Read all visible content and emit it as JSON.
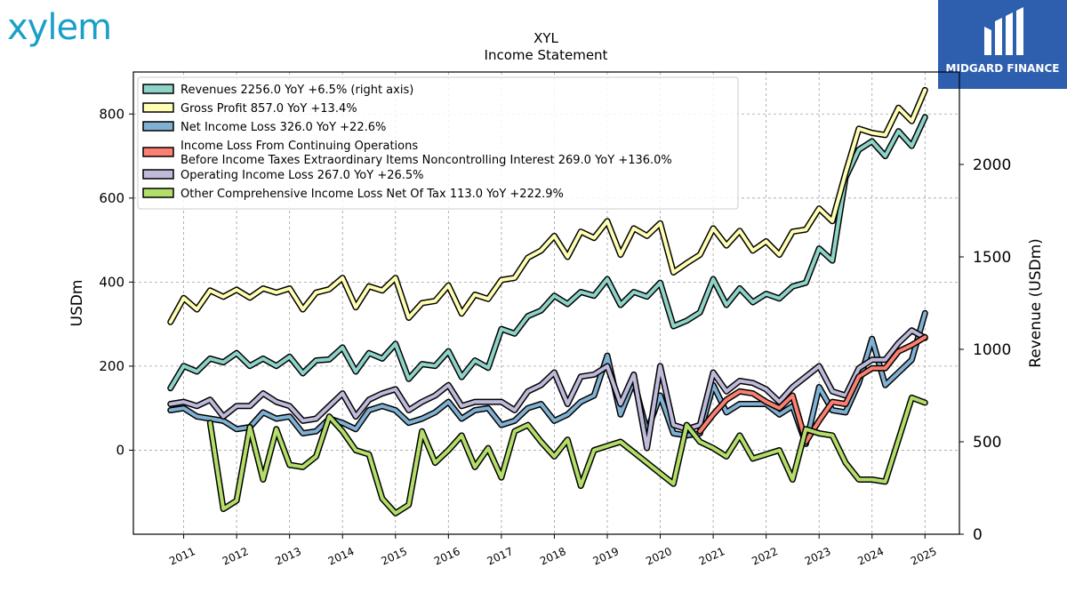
{
  "logo": {
    "text": "xylem",
    "color": "#1aa0c8"
  },
  "badge": {
    "text": "MIDGARD FINANCE",
    "color": "#2d5fae"
  },
  "chart_data": {
    "type": "line",
    "title": "XYL",
    "subtitle": "Income Statement",
    "ylabel": "USDm",
    "ylabel_right": "Revenue (USDm)",
    "ylim": [
      -200,
      900
    ],
    "ylim_right": [
      0,
      2500
    ],
    "xlim": [
      2010.05,
      2025.65
    ],
    "yticks": [
      0,
      200,
      400,
      600,
      800
    ],
    "yticks_right": [
      0,
      500,
      1000,
      1500,
      2000
    ],
    "xticks": [
      "2011",
      "2012",
      "2013",
      "2014",
      "2015",
      "2016",
      "2017",
      "2018",
      "2019",
      "2020",
      "2021",
      "2022",
      "2023",
      "2024",
      "2025"
    ],
    "grid": true,
    "legend_position": "top-left",
    "series": [
      {
        "name": "Revenues  2256.0 YoY +6.5% (right axis)",
        "axis": "right",
        "color": "#8dd3c7",
        "x": [
          2010.75,
          2011.0,
          2011.25,
          2011.5,
          2011.75,
          2012.0,
          2012.25,
          2012.5,
          2012.75,
          2013.0,
          2013.25,
          2013.5,
          2013.75,
          2014.0,
          2014.25,
          2014.5,
          2014.75,
          2015.0,
          2015.25,
          2015.5,
          2015.75,
          2016.0,
          2016.25,
          2016.5,
          2016.75,
          2017.0,
          2017.25,
          2017.5,
          2017.75,
          2018.0,
          2018.25,
          2018.5,
          2018.75,
          2019.0,
          2019.25,
          2019.5,
          2019.75,
          2020.0,
          2020.25,
          2020.5,
          2020.75,
          2021.0,
          2021.25,
          2021.5,
          2021.75,
          2022.0,
          2022.25,
          2022.5,
          2022.75,
          2023.0,
          2023.25,
          2023.5,
          2023.75,
          2024.0,
          2024.25,
          2024.5,
          2024.75,
          2025.0
        ],
        "values": [
          790,
          910,
          880,
          950,
          930,
          980,
          910,
          950,
          910,
          960,
          870,
          940,
          945,
          1010,
          880,
          980,
          950,
          1030,
          840,
          920,
          910,
          990,
          850,
          940,
          900,
          1110,
          1085,
          1180,
          1210,
          1290,
          1245,
          1310,
          1290,
          1380,
          1240,
          1310,
          1285,
          1360,
          1125,
          1155,
          1200,
          1380,
          1240,
          1330,
          1255,
          1300,
          1275,
          1340,
          1360,
          1545,
          1480,
          1930,
          2080,
          2125,
          2045,
          2180,
          2100,
          2256
        ]
      },
      {
        "name": "Gross Profit  857.0 YoY +13.4%",
        "axis": "left",
        "color": "#ffffb3",
        "x": [
          2010.75,
          2011.0,
          2011.25,
          2011.5,
          2011.75,
          2012.0,
          2012.25,
          2012.5,
          2012.75,
          2013.0,
          2013.25,
          2013.5,
          2013.75,
          2014.0,
          2014.25,
          2014.5,
          2014.75,
          2015.0,
          2015.25,
          2015.5,
          2015.75,
          2016.0,
          2016.25,
          2016.5,
          2016.75,
          2017.0,
          2017.25,
          2017.5,
          2017.75,
          2018.0,
          2018.25,
          2018.5,
          2018.75,
          2019.0,
          2019.25,
          2019.5,
          2019.75,
          2020.0,
          2020.25,
          2020.5,
          2020.75,
          2021.0,
          2021.25,
          2021.5,
          2021.75,
          2022.0,
          2022.25,
          2022.5,
          2022.75,
          2023.0,
          2023.25,
          2023.5,
          2023.75,
          2024.0,
          2024.25,
          2024.5,
          2024.75,
          2025.0
        ],
        "values": [
          305,
          362,
          335,
          380,
          365,
          382,
          363,
          385,
          375,
          385,
          335,
          375,
          383,
          410,
          340,
          390,
          380,
          410,
          315,
          350,
          355,
          392,
          325,
          370,
          360,
          405,
          410,
          458,
          475,
          510,
          460,
          520,
          505,
          545,
          465,
          528,
          510,
          540,
          423,
          445,
          465,
          528,
          487,
          522,
          475,
          497,
          465,
          520,
          525,
          575,
          545,
          660,
          765,
          755,
          750,
          815,
          783,
          857
        ]
      },
      {
        "name": "Net Income Loss  326.0 YoY +22.6%",
        "axis": "left",
        "color": "#80b1d3",
        "x": [
          2010.75,
          2011.0,
          2011.25,
          2011.5,
          2011.75,
          2012.0,
          2012.25,
          2012.5,
          2012.75,
          2013.0,
          2013.25,
          2013.5,
          2013.75,
          2014.0,
          2014.25,
          2014.5,
          2014.75,
          2015.0,
          2015.25,
          2015.5,
          2015.75,
          2016.0,
          2016.25,
          2016.5,
          2016.75,
          2017.0,
          2017.25,
          2017.5,
          2017.75,
          2018.0,
          2018.25,
          2018.5,
          2018.75,
          2019.0,
          2019.25,
          2019.5,
          2019.75,
          2020.0,
          2020.25,
          2020.5,
          2020.75,
          2021.0,
          2021.25,
          2021.5,
          2021.75,
          2022.0,
          2022.25,
          2022.5,
          2022.75,
          2023.0,
          2023.25,
          2023.5,
          2023.75,
          2024.0,
          2024.25,
          2024.5,
          2024.75,
          2025.0
        ],
        "values": [
          95,
          100,
          80,
          75,
          70,
          50,
          55,
          90,
          75,
          80,
          40,
          45,
          75,
          65,
          50,
          95,
          105,
          95,
          65,
          75,
          90,
          115,
          75,
          95,
          100,
          60,
          70,
          100,
          110,
          70,
          85,
          115,
          130,
          225,
          85,
          165,
          45,
          130,
          40,
          35,
          40,
          155,
          90,
          110,
          110,
          110,
          85,
          105,
          15,
          150,
          95,
          90,
          160,
          265,
          155,
          185,
          215,
          326
        ]
      },
      {
        "name": "Income Loss From Continuing Operations\nBefore Income Taxes Extraordinary Items Noncontrolling Interest  269.0 YoY +136.0%",
        "axis": "left",
        "color": "#fb8072",
        "x": [
          2020.75,
          2021.0,
          2021.25,
          2021.5,
          2021.75,
          2022.0,
          2022.25,
          2022.5,
          2022.75,
          2023.0,
          2023.25,
          2023.5,
          2023.75,
          2024.0,
          2024.25,
          2024.5,
          2024.75,
          2025.0
        ],
        "values": [
          45,
          85,
          120,
          140,
          135,
          115,
          100,
          130,
          20,
          70,
          115,
          110,
          175,
          195,
          195,
          235,
          250,
          269
        ]
      },
      {
        "name": "Operating Income Loss  267.0 YoY +26.5%",
        "axis": "left",
        "color": "#bebada",
        "x": [
          2010.75,
          2011.0,
          2011.25,
          2011.5,
          2011.75,
          2012.0,
          2012.25,
          2012.5,
          2012.75,
          2013.0,
          2013.25,
          2013.5,
          2013.75,
          2014.0,
          2014.25,
          2014.5,
          2014.75,
          2015.0,
          2015.25,
          2015.5,
          2015.75,
          2016.0,
          2016.25,
          2016.5,
          2016.75,
          2017.0,
          2017.25,
          2017.5,
          2017.75,
          2018.0,
          2018.25,
          2018.5,
          2018.75,
          2019.0,
          2019.25,
          2019.5,
          2019.75,
          2020.0,
          2020.25,
          2020.5,
          2020.75,
          2021.0,
          2021.25,
          2021.5,
          2021.75,
          2022.0,
          2022.25,
          2022.5,
          2022.75,
          2023.0,
          2023.25,
          2023.5,
          2023.75,
          2024.0,
          2024.25,
          2024.5,
          2024.75,
          2025.0
        ],
        "values": [
          110,
          115,
          105,
          120,
          80,
          105,
          105,
          135,
          115,
          105,
          70,
          75,
          105,
          135,
          80,
          120,
          135,
          145,
          95,
          115,
          130,
          155,
          105,
          115,
          115,
          115,
          95,
          140,
          155,
          185,
          110,
          175,
          180,
          200,
          110,
          180,
          5,
          200,
          60,
          50,
          60,
          185,
          140,
          165,
          160,
          145,
          115,
          150,
          175,
          200,
          140,
          130,
          195,
          215,
          215,
          255,
          285,
          267
        ]
      },
      {
        "name": "Other Comprehensive Income Loss Net Of Tax  113.0 YoY +222.9%",
        "axis": "left",
        "color": "#b3de69",
        "x": [
          2011.5,
          2011.75,
          2012.0,
          2012.25,
          2012.5,
          2012.75,
          2013.0,
          2013.25,
          2013.5,
          2013.75,
          2014.0,
          2014.25,
          2014.5,
          2014.75,
          2015.0,
          2015.25,
          2015.5,
          2015.75,
          2016.0,
          2016.25,
          2016.5,
          2016.75,
          2017.0,
          2017.25,
          2017.5,
          2017.75,
          2018.0,
          2018.25,
          2018.5,
          2018.75,
          2019.0,
          2019.25,
          2019.5,
          2019.75,
          2020.0,
          2020.25,
          2020.5,
          2020.75,
          2021.0,
          2021.25,
          2021.5,
          2021.75,
          2022.0,
          2022.25,
          2022.5,
          2022.75,
          2023.0,
          2023.25,
          2023.5,
          2023.75,
          2024.0,
          2024.25,
          2024.5,
          2024.75,
          2025.0
        ],
        "values": [
          65,
          -140,
          -120,
          55,
          -70,
          50,
          -35,
          -40,
          -15,
          80,
          45,
          0,
          -10,
          -115,
          -150,
          -130,
          45,
          -30,
          0,
          35,
          -40,
          5,
          -65,
          45,
          60,
          20,
          -15,
          25,
          -85,
          0,
          10,
          20,
          -5,
          -30,
          -55,
          -80,
          60,
          20,
          5,
          -15,
          35,
          -20,
          -10,
          0,
          -70,
          50,
          40,
          35,
          -30,
          -70,
          -70,
          -75,
          25,
          125,
          113
        ]
      }
    ]
  }
}
